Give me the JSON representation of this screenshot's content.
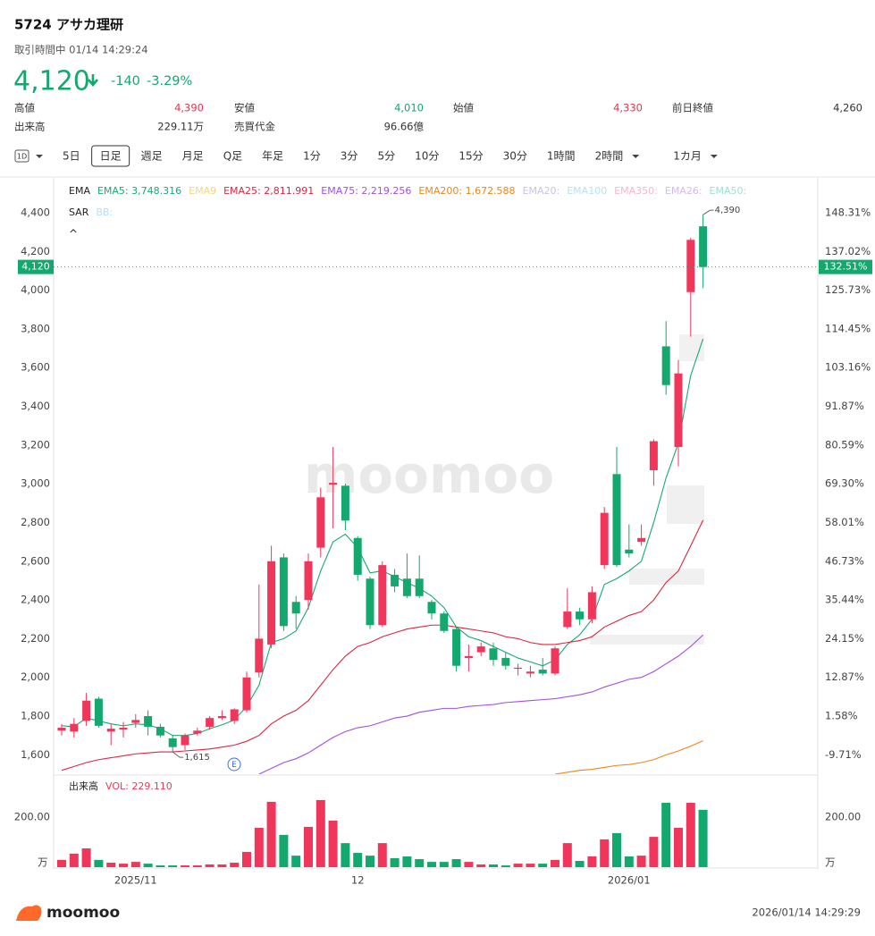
{
  "header": {
    "title": "5724 アサカ理研",
    "status": "取引時間中 01/14 14:29:24",
    "price": "4,120",
    "change": "-140",
    "change_pct": "-3.29%",
    "stats": [
      [
        {
          "label": "高値",
          "value": "4,390",
          "color": "#e8324f"
        },
        {
          "label": "安値",
          "value": "4,010",
          "color": "#13a86d"
        },
        {
          "label": "始値",
          "value": "4,330",
          "color": "#e8324f"
        },
        {
          "label": "前日終値",
          "value": "4,260",
          "color": "#333333"
        }
      ],
      [
        {
          "label": "出来高",
          "value": "229.11万",
          "color": "#333333"
        },
        {
          "label": "売買代金",
          "value": "96.66億",
          "color": "#333333"
        }
      ]
    ]
  },
  "toolbar": {
    "interval_icon": "1D",
    "tabs": [
      {
        "label": "5日"
      },
      {
        "label": "日足",
        "active": true
      },
      {
        "label": "週足"
      },
      {
        "label": "月足"
      },
      {
        "label": "Q足"
      },
      {
        "label": "年足"
      },
      {
        "label": "1分"
      },
      {
        "label": "3分"
      },
      {
        "label": "5分"
      },
      {
        "label": "10分"
      },
      {
        "label": "15分"
      },
      {
        "label": "30分"
      },
      {
        "label": "1時間"
      },
      {
        "label": "2時間",
        "dropdown": true
      },
      {
        "label": "1カ月",
        "dropdown": true
      }
    ]
  },
  "chart_data": {
    "type": "candlestick",
    "categories": [
      null,
      null,
      null,
      null,
      null,
      null,
      "2025/11",
      null,
      null,
      null,
      null,
      null,
      null,
      null,
      null,
      null,
      null,
      null,
      null,
      null,
      null,
      null,
      null,
      null,
      "12",
      null,
      null,
      null,
      null,
      null,
      null,
      null,
      null,
      null,
      null,
      null,
      null,
      null,
      null,
      null,
      null,
      null,
      null,
      null,
      null,
      null,
      "2026/01",
      null,
      null,
      null,
      null,
      null,
      null
    ],
    "open": [
      1725,
      1720,
      1775,
      1890,
      1720,
      1730,
      1765,
      1800,
      1745,
      1685,
      1650,
      1710,
      1745,
      1790,
      1775,
      1830,
      2025,
      2170,
      2620,
      2390,
      2400,
      2670,
      2995,
      2990,
      2720,
      2510,
      2270,
      2530,
      2510,
      2510,
      2390,
      2330,
      2250,
      2100,
      2130,
      2150,
      2100,
      2045,
      2020,
      2040,
      2020,
      2260,
      2340,
      2300,
      2580,
      3050,
      2660,
      2700,
      3070,
      3710,
      3190,
      3990,
      4330
    ],
    "high": [
      1760,
      1790,
      1920,
      1900,
      1760,
      1770,
      1810,
      1830,
      1760,
      1700,
      1710,
      1740,
      1800,
      1830,
      1840,
      2030,
      2480,
      2680,
      2640,
      2420,
      2640,
      2980,
      3190,
      3000,
      2730,
      2520,
      2600,
      2560,
      2640,
      2630,
      2400,
      2340,
      2260,
      2170,
      2180,
      2180,
      2130,
      2070,
      2060,
      2100,
      2160,
      2460,
      2360,
      2470,
      2880,
      3190,
      2790,
      2790,
      3230,
      3840,
      3640,
      4270,
      4390
    ],
    "low": [
      1700,
      1690,
      1750,
      1740,
      1650,
      1690,
      1740,
      1700,
      1690,
      1615,
      1625,
      1700,
      1730,
      1780,
      1760,
      1820,
      2000,
      2150,
      2240,
      2250,
      2350,
      2620,
      2770,
      2760,
      2500,
      2250,
      2260,
      2440,
      2410,
      2410,
      2300,
      2230,
      2030,
      2030,
      2110,
      2060,
      2040,
      2010,
      2000,
      2010,
      2010,
      2250,
      2270,
      2280,
      2560,
      2570,
      2620,
      2680,
      2990,
      3460,
      3090,
      3760,
      4010
    ],
    "close": [
      1740,
      1760,
      1880,
      1750,
      1735,
      1740,
      1780,
      1745,
      1700,
      1640,
      1700,
      1725,
      1790,
      1800,
      1835,
      2000,
      2200,
      2600,
      2265,
      2330,
      2600,
      2930,
      3005,
      2810,
      2530,
      2270,
      2580,
      2470,
      2420,
      2420,
      2330,
      2240,
      2060,
      2110,
      2160,
      2090,
      2060,
      2050,
      2030,
      2020,
      2150,
      2340,
      2300,
      2440,
      2850,
      2580,
      2640,
      2720,
      3220,
      3510,
      3570,
      4260,
      4120
    ],
    "up_color": "#f0365a",
    "down_color": "#13a86d",
    "ylim": [
      1500,
      4580
    ],
    "yticks": [
      {
        "value": 1600,
        "label": "1,600"
      },
      {
        "value": 1800,
        "label": "1,800"
      },
      {
        "value": 2000,
        "label": "2,000"
      },
      {
        "value": 2200,
        "label": "2,200"
      },
      {
        "value": 2400,
        "label": "2,400"
      },
      {
        "value": 2600,
        "label": "2,600"
      },
      {
        "value": 2800,
        "label": "2,800"
      },
      {
        "value": 3000,
        "label": "3,000"
      },
      {
        "value": 3200,
        "label": "3,200"
      },
      {
        "value": 3400,
        "label": "3,400"
      },
      {
        "value": 3600,
        "label": "3,600"
      },
      {
        "value": 3800,
        "label": "3,800"
      },
      {
        "value": 4000,
        "label": "4,000"
      },
      {
        "value": 4200,
        "label": "4,200"
      },
      {
        "value": 4400,
        "label": "4,400"
      }
    ],
    "y2lim": [
      -15.355,
      158.471
    ],
    "y2ticks": [
      {
        "value": -9.71,
        "label": "-9.71%"
      },
      {
        "value": 1.58,
        "label": "1.58%"
      },
      {
        "value": 12.87,
        "label": "12.87%"
      },
      {
        "value": 24.15,
        "label": "24.15%"
      },
      {
        "value": 35.44,
        "label": "35.44%"
      },
      {
        "value": 46.73,
        "label": "46.73%"
      },
      {
        "value": 58.01,
        "label": "58.01%"
      },
      {
        "value": 69.3,
        "label": "69.30%"
      },
      {
        "value": 80.59,
        "label": "80.59%"
      },
      {
        "value": 91.87,
        "label": "91.87%"
      },
      {
        "value": 103.16,
        "label": "103.16%"
      },
      {
        "value": 114.45,
        "label": "114.45%"
      },
      {
        "value": 125.73,
        "label": "125.73%"
      },
      {
        "value": 137.02,
        "label": "137.02%"
      },
      {
        "value": 148.31,
        "label": "148.31%"
      }
    ],
    "current": {
      "value": 4120,
      "label": "4,120",
      "pct_label": "132.51%",
      "color": "#13a86d"
    },
    "high_label": "4,390",
    "low_label": "1,615",
    "event_marker": "E",
    "watermark": "moomoo",
    "indicator_title": "EMA",
    "lines": [
      {
        "label": "EMA5: 3,748.316",
        "color": "#1aa872",
        "values": [
          1750,
          1745,
          1790,
          1775,
          1760,
          1750,
          1760,
          1755,
          1735,
          1700,
          1700,
          1710,
          1735,
          1755,
          1780,
          1850,
          1960,
          2180,
          2200,
          2240,
          2360,
          2550,
          2700,
          2740,
          2670,
          2540,
          2550,
          2520,
          2490,
          2460,
          2420,
          2360,
          2260,
          2210,
          2190,
          2160,
          2130,
          2100,
          2080,
          2060,
          2090,
          2170,
          2220,
          2300,
          2480,
          2510,
          2550,
          2600,
          2800,
          3030,
          3210,
          3560,
          3748.316
        ]
      },
      {
        "label": "EMA9",
        "color": "#f3d48c"
      },
      {
        "label": "EMA25: 2,811.991",
        "color": "#e0243f",
        "values": [
          1520,
          1540,
          1560,
          1575,
          1585,
          1595,
          1605,
          1610,
          1615,
          1615,
          1620,
          1625,
          1630,
          1640,
          1650,
          1670,
          1700,
          1760,
          1800,
          1830,
          1880,
          1960,
          2040,
          2110,
          2160,
          2180,
          2210,
          2230,
          2250,
          2260,
          2270,
          2270,
          2260,
          2250,
          2240,
          2230,
          2210,
          2200,
          2180,
          2170,
          2170,
          2180,
          2190,
          2210,
          2260,
          2290,
          2320,
          2340,
          2400,
          2490,
          2550,
          2680,
          2811.991
        ]
      },
      {
        "label": "EMA75: 2,219.256",
        "color": "#a24ee6",
        "values": [
          null,
          null,
          null,
          null,
          null,
          null,
          null,
          null,
          null,
          null,
          null,
          null,
          null,
          null,
          null,
          null,
          1500,
          1530,
          1560,
          1580,
          1610,
          1650,
          1690,
          1720,
          1740,
          1750,
          1770,
          1790,
          1800,
          1820,
          1830,
          1840,
          1840,
          1850,
          1855,
          1860,
          1870,
          1875,
          1880,
          1885,
          1890,
          1900,
          1910,
          1925,
          1950,
          1970,
          1990,
          2000,
          2030,
          2070,
          2110,
          2160,
          2219.256
        ]
      },
      {
        "label": "EMA200: 1,672.588",
        "color": "#f0851a",
        "values": [
          null,
          null,
          null,
          null,
          null,
          null,
          null,
          null,
          null,
          null,
          null,
          null,
          null,
          null,
          null,
          null,
          null,
          null,
          null,
          null,
          null,
          null,
          null,
          null,
          null,
          null,
          null,
          null,
          null,
          null,
          null,
          null,
          null,
          null,
          null,
          null,
          null,
          null,
          null,
          null,
          1500,
          1510,
          1520,
          1525,
          1535,
          1545,
          1550,
          1560,
          1575,
          1600,
          1620,
          1645,
          1672.588
        ]
      },
      {
        "label": "EMA20:",
        "color": "#c9c2ea"
      },
      {
        "label": "EMA100",
        "color": "#b6e4f0"
      },
      {
        "label": "EMA350:",
        "color": "#f2b9c9"
      },
      {
        "label": "EMA26:",
        "color": "#d4b9f2"
      },
      {
        "label": "EMA50:",
        "color": "#9fe0cf"
      }
    ],
    "overlays": [
      {
        "label": "SAR",
        "color": "#222222"
      },
      {
        "label": "BB:",
        "color": "#b6dff2"
      }
    ],
    "collapse_icon": "^",
    "volume": {
      "title": "出来高",
      "label": "VOL: 229.110",
      "label_color": "#f0365a",
      "values": [
        29,
        54,
        75,
        29,
        18,
        14,
        21,
        14,
        7,
        7,
        7,
        7,
        11,
        11,
        18,
        61,
        157,
        261,
        129,
        46,
        161,
        268,
        186,
        96,
        57,
        46,
        96,
        36,
        43,
        32,
        21,
        21,
        32,
        21,
        11,
        11,
        7,
        14,
        14,
        14,
        29,
        96,
        25,
        43,
        111,
        136,
        43,
        46,
        121,
        257,
        157,
        257,
        229.11
      ],
      "ylim": [
        0,
        357
      ],
      "yticks": [
        {
          "value": 200,
          "label": "200.00"
        }
      ],
      "unit": "万"
    }
  },
  "footer": {
    "logo": "moomoo",
    "timestamp": "2026/01/14 14:29:29"
  }
}
